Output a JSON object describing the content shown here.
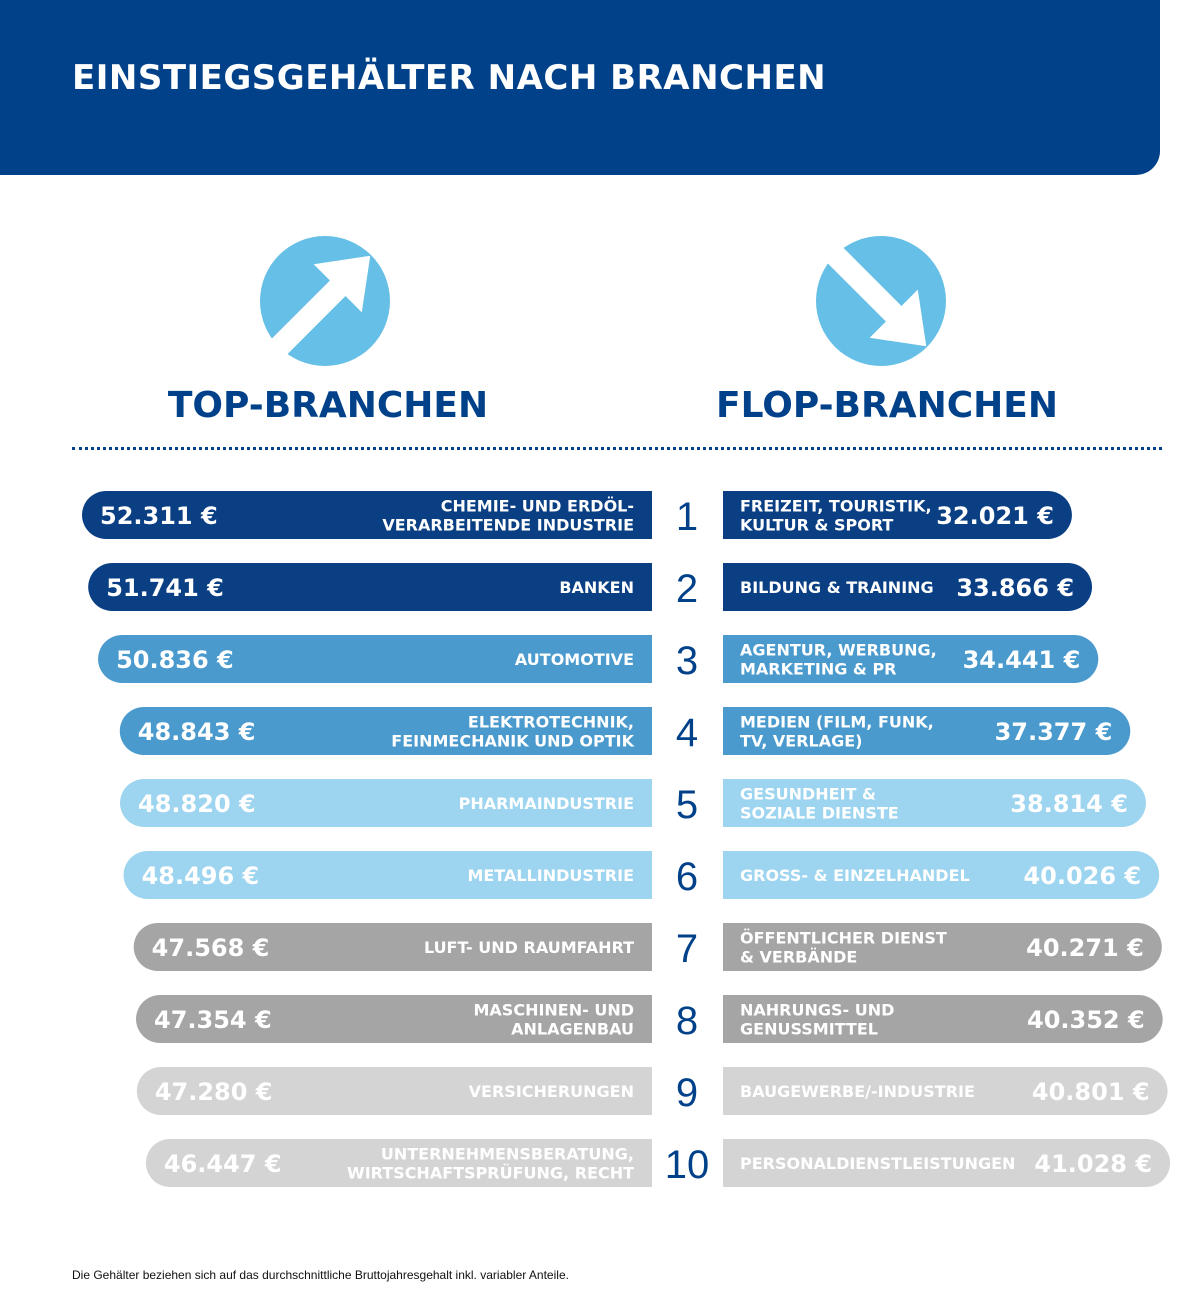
{
  "header": {
    "title": "EINSTIEGSGEHÄLTER NACH BRANCHEN"
  },
  "top": {
    "title": "TOP-BRANCHEN",
    "icon": "arrow-up-right-icon"
  },
  "flop": {
    "title": "FLOP-BRANCHEN",
    "icon": "arrow-down-right-icon"
  },
  "footnote": "Die Gehälter beziehen sich auf das durchschnittliche Bruttojahresgehalt inkl. variabler Anteile.",
  "colors": {
    "brand": "#00418a",
    "arrow": "#66bfe6",
    "tiers": [
      "#0a3f84",
      "#4a9ace",
      "#9dd4ef",
      "#a5a5a5",
      "#d4d4d4"
    ],
    "text_light": "#ffffff",
    "rank": "#00418a"
  },
  "chart_data": {
    "type": "bar",
    "ranks": [
      "1",
      "2",
      "3",
      "4",
      "5",
      "6",
      "7",
      "8",
      "9",
      "10"
    ],
    "tiers": [
      0,
      0,
      1,
      1,
      2,
      2,
      3,
      3,
      4,
      4
    ],
    "series": [
      {
        "name": "TOP-BRANCHEN",
        "values": [
          52311,
          51741,
          50836,
          48843,
          48820,
          48496,
          47568,
          47354,
          47280,
          46447
        ],
        "value_labels": [
          "52.311 €",
          "51.741 €",
          "50.836 €",
          "48.843 €",
          "48.820 €",
          "48.496 €",
          "47.568 €",
          "47.354 €",
          "47.280 €",
          "46.447 €"
        ],
        "categories": [
          [
            "CHEMIE- UND ERDÖL-",
            "VERARBEITENDE INDUSTRIE"
          ],
          [
            "BANKEN"
          ],
          [
            "AUTOMOTIVE"
          ],
          [
            "ELEKTROTECHNIK,",
            "FEINMECHANIK UND OPTIK"
          ],
          [
            "PHARMAINDUSTRIE"
          ],
          [
            "METALLINDUSTRIE"
          ],
          [
            "LUFT- UND RAUMFAHRT"
          ],
          [
            "MASCHINEN- UND",
            "ANLAGENBAU"
          ],
          [
            "VERSICHERUNGEN"
          ],
          [
            "UNTERNEHMENSBERATUNG,",
            "WIRTSCHAFTSPRÜFUNG, RECHT"
          ]
        ]
      },
      {
        "name": "FLOP-BRANCHEN",
        "values": [
          32021,
          33866,
          34441,
          37377,
          38814,
          40026,
          40271,
          40352,
          40801,
          41028
        ],
        "value_labels": [
          "32.021 €",
          "33.866 €",
          "34.441 €",
          "37.377 €",
          "38.814 €",
          "40.026 €",
          "40.271 €",
          "40.352 €",
          "40.801 €",
          "41.028 €"
        ],
        "categories": [
          [
            "FREIZEIT, TOURISTIK,",
            "KULTUR & SPORT"
          ],
          [
            "BILDUNG & TRAINING"
          ],
          [
            "AGENTUR, WERBUNG,",
            "MARKETING & PR"
          ],
          [
            "MEDIEN (FILM, FUNK,",
            "TV, VERLAGE)"
          ],
          [
            "GESUNDHEIT &",
            "SOZIALE DIENSTE"
          ],
          [
            "GROSS- & EINZELHANDEL"
          ],
          [
            "ÖFFENTLICHER DIENST",
            "& VERBÄNDE"
          ],
          [
            "NAHRUNGS- UND",
            "GENUSSMITTEL"
          ],
          [
            "BAUGEWERBE/-INDUSTRIE"
          ],
          [
            "PERSONALDIENSTLEISTUNGEN"
          ]
        ]
      }
    ]
  }
}
